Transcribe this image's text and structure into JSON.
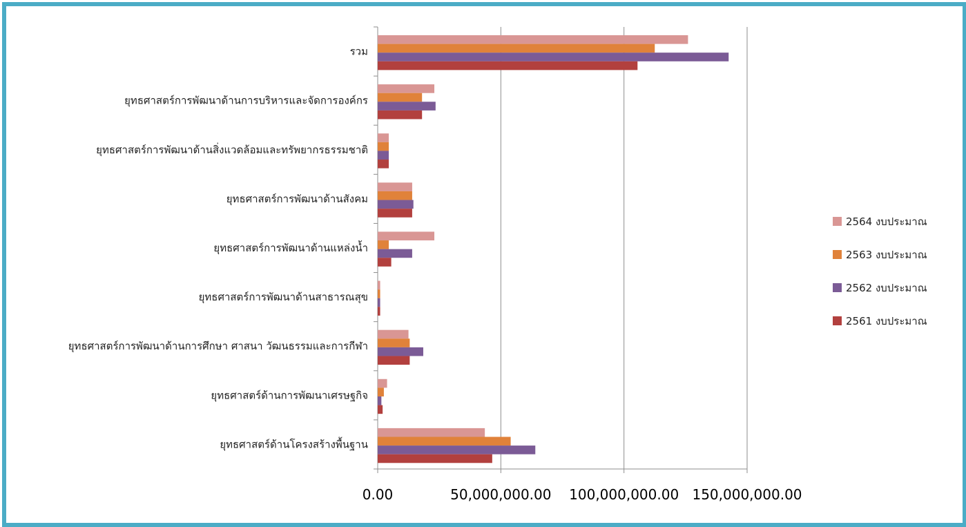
{
  "chart_data": {
    "type": "bar",
    "orientation": "horizontal",
    "categories": [
      "รวม",
      "ยุทธศาสตร์การพัฒนาด้านการบริหารและจัดการองค์กร",
      "ยุทธศาสตร์การพัฒนาด้านสิ่งแวดล้อมและทรัพยากรธรรมชาติ",
      "ยุทธศาสตร์การพัฒนาด้านสังคม",
      "ยุทธศาสตร์การพัฒนาด้านแหล่งน้ำ",
      "ยุทธศาสตร์การพัฒนาด้านสาธารณสุข",
      "ยุทธศาสตร์การพัฒนาด้านการศึกษา ศาสนา วัฒนธรรมและการกีฬา",
      "ยุทธศาสตร์ด้านการพัฒนาเศรษฐกิจ",
      "ยุทธศาสตร์ด้านโครงสร้างพื้นฐาน"
    ],
    "series": [
      {
        "name": "2564 งบประมาณ",
        "color": "#d99694",
        "values": [
          126000000,
          23000000,
          4500000,
          14000000,
          23000000,
          1000000,
          12500000,
          3800000,
          43500000
        ]
      },
      {
        "name": "2563 งบประมาณ",
        "color": "#e0823a",
        "values": [
          112500000,
          18000000,
          4500000,
          14000000,
          4500000,
          1000000,
          13000000,
          2500000,
          54000000
        ]
      },
      {
        "name": "2562 งบประมาณ",
        "color": "#7b5b96",
        "values": [
          142500000,
          23500000,
          4500000,
          14500000,
          14000000,
          1000000,
          18500000,
          1500000,
          64000000
        ]
      },
      {
        "name": "2561 งบประมาณ",
        "color": "#b2403e",
        "values": [
          105500000,
          18000000,
          4500000,
          14000000,
          5500000,
          1000000,
          13000000,
          2000000,
          46500000
        ]
      }
    ],
    "xlim": [
      0,
      150000000
    ],
    "xticks": [
      "0.00",
      "50,000,000.00",
      "100,000,000.00",
      "150,000,000.00"
    ],
    "grid": true,
    "legend_position": "right"
  }
}
